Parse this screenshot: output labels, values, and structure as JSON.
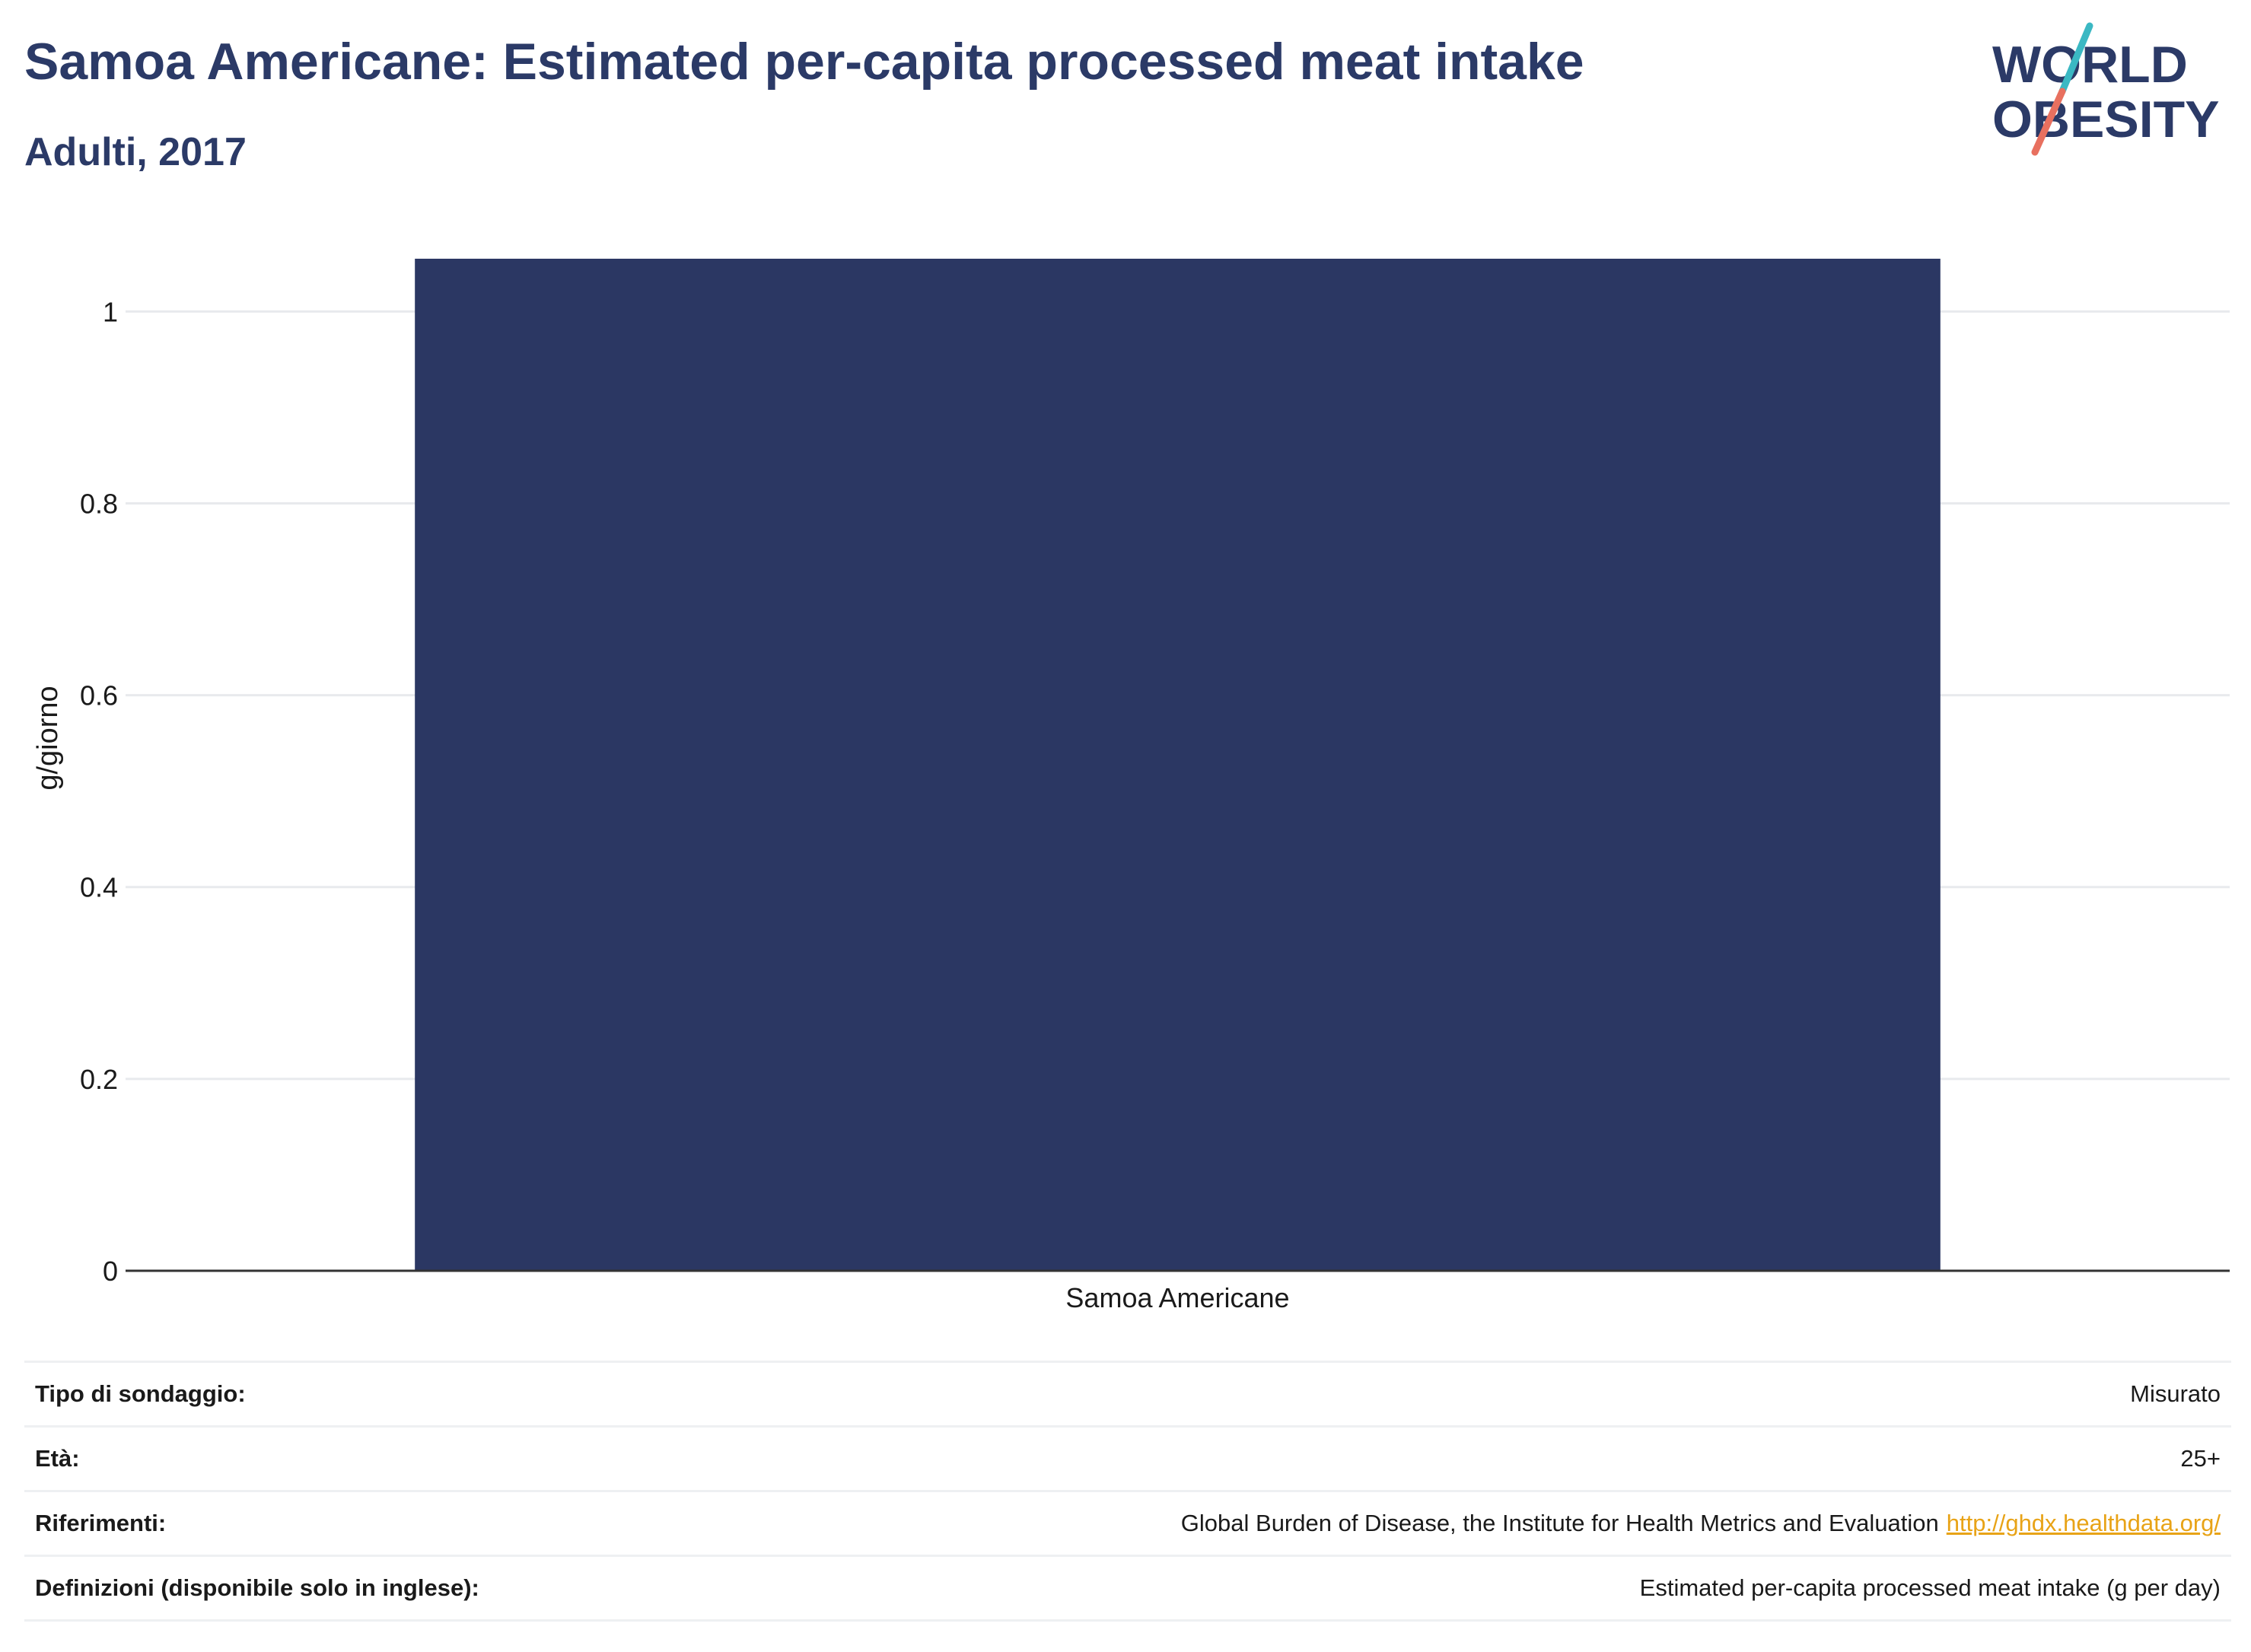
{
  "header": {
    "title": "Samoa Americane: Estimated per-capita processed meat intake",
    "subtitle": "Adulti, 2017"
  },
  "logo": {
    "line1": "WORLD",
    "line2": "OBESITY",
    "colors": {
      "text": "#2b3a67",
      "slash_top": "#3bb8c3",
      "slash_bottom": "#e8705f"
    }
  },
  "colors": {
    "bar": "#2b3763",
    "grid": "#e8eaed",
    "axis": "#333333"
  },
  "chart_data": {
    "type": "bar",
    "categories": [
      "Samoa Americane"
    ],
    "values": [
      1.055
    ],
    "ylabel": "g/giorno",
    "xlabel": "",
    "ylim": [
      0,
      1.055
    ],
    "yticks": [
      0,
      0.2,
      0.4,
      0.6,
      0.8,
      1
    ],
    "ytick_labels": [
      "0",
      "0.2",
      "0.4",
      "0.6",
      "0.8",
      "1"
    ],
    "grid": true,
    "legend": "none"
  },
  "info": [
    {
      "label": "Tipo di sondaggio:",
      "value": "Misurato"
    },
    {
      "label": "Età:",
      "value": "25+"
    },
    {
      "label": "Riferimenti:",
      "value": "Global Burden of Disease, the Institute for Health Metrics and Evaluation",
      "link": "http://ghdx.healthdata.org/"
    },
    {
      "label": "Definizioni (disponibile solo in inglese):",
      "value": "Estimated per-capita processed meat intake (g per day)"
    }
  ]
}
